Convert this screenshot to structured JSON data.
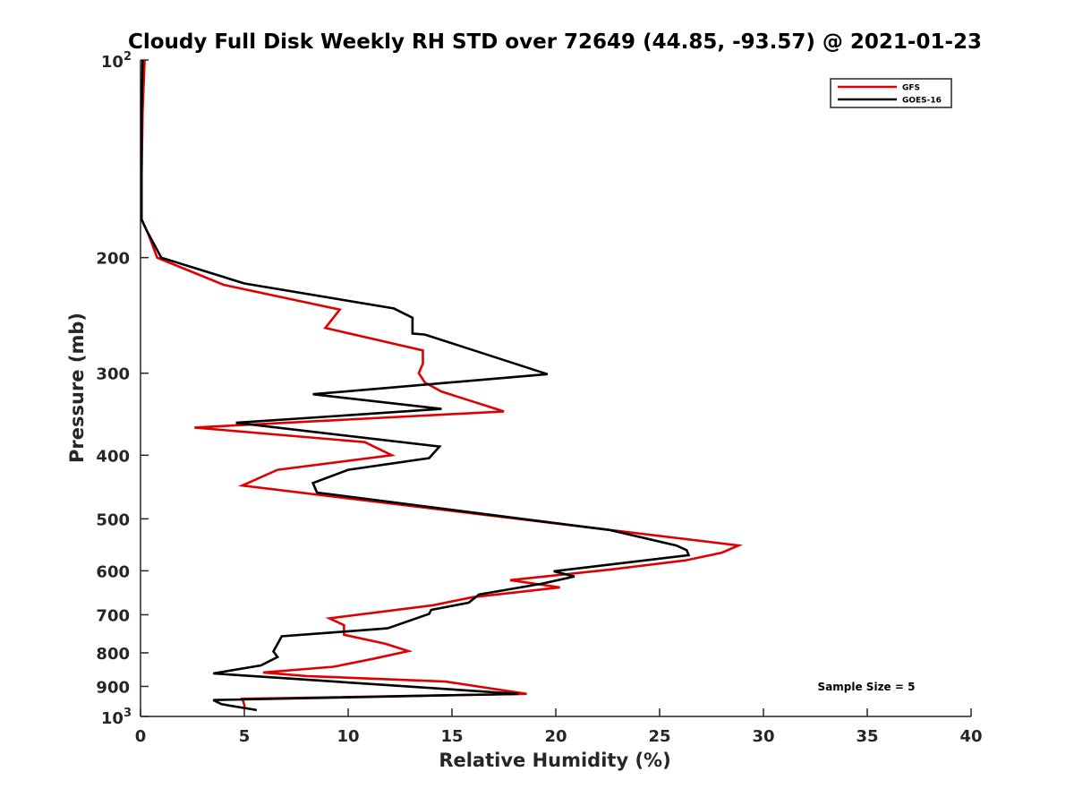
{
  "chart_data": {
    "type": "line",
    "title": "Cloudy Full Disk Weekly RH STD over 72649 (44.85, -93.57) @ 2021-01-23",
    "xlabel": "Relative Humidity (%)",
    "ylabel": "Pressure (mb)",
    "xlim": [
      0,
      40
    ],
    "ylim": [
      100,
      1000
    ],
    "y_scale": "log",
    "y_reversed": true,
    "grid": false,
    "x_ticks": [
      0,
      5,
      10,
      15,
      20,
      25,
      30,
      35,
      40
    ],
    "y_ticks": [
      {
        "value": 100,
        "base": "10",
        "exp": "2"
      },
      {
        "value": 200,
        "label": "200"
      },
      {
        "value": 300,
        "label": "300"
      },
      {
        "value": 400,
        "label": "400"
      },
      {
        "value": 500,
        "label": "500"
      },
      {
        "value": 600,
        "label": "600"
      },
      {
        "value": 700,
        "label": "700"
      },
      {
        "value": 800,
        "label": "800"
      },
      {
        "value": 900,
        "label": "900"
      },
      {
        "value": 1000,
        "base": "10",
        "exp": "3"
      }
    ],
    "legend_position": "top-right",
    "annotation": "Sample Size = 5",
    "series": [
      {
        "name": "GFS",
        "color": "#e00000",
        "points": [
          [
            0.2,
            100
          ],
          [
            0.1,
            120
          ],
          [
            0.05,
            150
          ],
          [
            0.05,
            175
          ],
          [
            0.4,
            185
          ],
          [
            0.8,
            200
          ],
          [
            4.0,
            220
          ],
          [
            9.6,
            240
          ],
          [
            8.9,
            256
          ],
          [
            13.6,
            277
          ],
          [
            13.6,
            290
          ],
          [
            13.4,
            300
          ],
          [
            13.7,
            310
          ],
          [
            14.5,
            320
          ],
          [
            17.5,
            343
          ],
          [
            2.6,
            363
          ],
          [
            10.8,
            382
          ],
          [
            12.1,
            400
          ],
          [
            6.6,
            421
          ],
          [
            4.9,
            445
          ],
          [
            28.8,
            549
          ],
          [
            28.0,
            563
          ],
          [
            26.3,
            578
          ],
          [
            22.7,
            597
          ],
          [
            17.8,
            620
          ],
          [
            20.2,
            636
          ],
          [
            16.0,
            658
          ],
          [
            14.1,
            677
          ],
          [
            9.1,
            709
          ],
          [
            9.8,
            726
          ],
          [
            9.8,
            751
          ],
          [
            11.8,
            775
          ],
          [
            12.9,
            795
          ],
          [
            11.2,
            817
          ],
          [
            9.3,
            840
          ],
          [
            5.9,
            857
          ],
          [
            8.0,
            868
          ],
          [
            14.7,
            885
          ],
          [
            18.6,
            924
          ],
          [
            4.9,
            940
          ],
          [
            5.0,
            960
          ],
          [
            5.0,
            975
          ]
        ]
      },
      {
        "name": "GOES-16",
        "color": "#000000",
        "points": [
          [
            0.1,
            100
          ],
          [
            0.05,
            120
          ],
          [
            0.05,
            150
          ],
          [
            0.05,
            175
          ],
          [
            0.3,
            182
          ],
          [
            1.0,
            200
          ],
          [
            5.0,
            219
          ],
          [
            12.2,
            239
          ],
          [
            13.1,
            247
          ],
          [
            13.1,
            261
          ],
          [
            13.7,
            262
          ],
          [
            19.6,
            301
          ],
          [
            8.3,
            323
          ],
          [
            14.5,
            340
          ],
          [
            4.6,
            357
          ],
          [
            14.4,
            388
          ],
          [
            13.9,
            404
          ],
          [
            10.0,
            421
          ],
          [
            8.3,
            441
          ],
          [
            8.5,
            456
          ],
          [
            22.6,
            520
          ],
          [
            25.8,
            549
          ],
          [
            26.3,
            558
          ],
          [
            26.4,
            568
          ],
          [
            19.9,
            601
          ],
          [
            20.9,
            612
          ],
          [
            19.3,
            628
          ],
          [
            16.3,
            652
          ],
          [
            15.8,
            671
          ],
          [
            14.0,
            688
          ],
          [
            13.9,
            698
          ],
          [
            11.9,
            734
          ],
          [
            6.8,
            755
          ],
          [
            6.4,
            796
          ],
          [
            6.6,
            812
          ],
          [
            5.8,
            836
          ],
          [
            3.5,
            860
          ],
          [
            18.2,
            924
          ],
          [
            3.5,
            944
          ],
          [
            3.9,
            958
          ],
          [
            5.6,
            978
          ]
        ]
      }
    ]
  }
}
